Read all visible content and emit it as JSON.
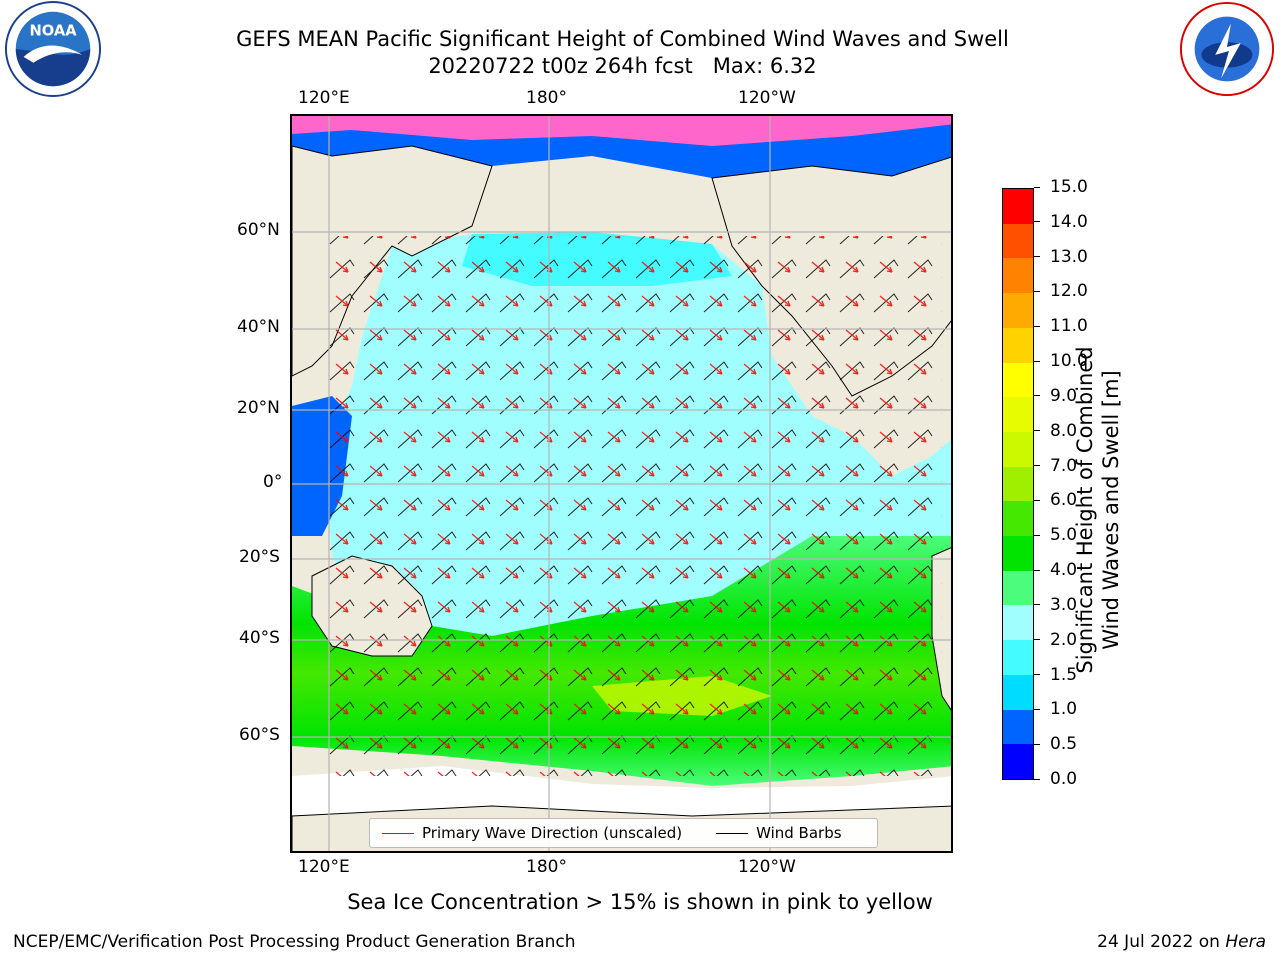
{
  "header": {
    "title_line1": "GEFS MEAN Pacific Significant Height of Combined Wind Waves and Swell",
    "title_line2": "20220722 t00z 264h fcst   Max: 6.32"
  },
  "logos": {
    "left": "NOAA",
    "right": "NATIONAL WEATHER SERVICE"
  },
  "map": {
    "lon_ticks_top": [
      "120°E",
      "180°",
      "120°W"
    ],
    "lon_ticks_bottom": [
      "120°E",
      "180°",
      "120°W"
    ],
    "lat_ticks": [
      "60°N",
      "40°N",
      "20°N",
      "0°",
      "20°S",
      "40°S",
      "60°S"
    ],
    "legend": {
      "wave_direction": "Primary Wave Direction (unscaled)",
      "wind_barbs": "Wind Barbs"
    },
    "colors": {
      "land": "#efebdc",
      "wave_arrow": "#ff0000",
      "barb": "#000000",
      "ice": "#ff66cc"
    }
  },
  "colorbar": {
    "label_line1": "Significant Height of Combined",
    "label_line2": "Wind Waves and Swell [m]",
    "ticks": [
      "0.0",
      "0.5",
      "1.0",
      "1.5",
      "2.0",
      "3.0",
      "4.0",
      "5.0",
      "6.0",
      "7.0",
      "8.0",
      "9.0",
      "10.0",
      "11.0",
      "12.0",
      "13.0",
      "14.0",
      "15.0"
    ],
    "colors": [
      "#0000ff",
      "#0064ff",
      "#00dcff",
      "#44fcff",
      "#a0fffe",
      "#4cfc7c",
      "#00e400",
      "#44e800",
      "#a0ee00",
      "#ccf800",
      "#e8fc00",
      "#ffff00",
      "#ffd200",
      "#ffaa00",
      "#ff8200",
      "#ff5000",
      "#ff0000"
    ]
  },
  "footer": {
    "ice_note": "Sea Ice Concentration > 15% is shown in pink to yellow",
    "branch": "NCEP/EMC/Verification Post Processing Product Generation Branch",
    "date": "24 Jul 2022 on",
    "machine": "Hera"
  }
}
